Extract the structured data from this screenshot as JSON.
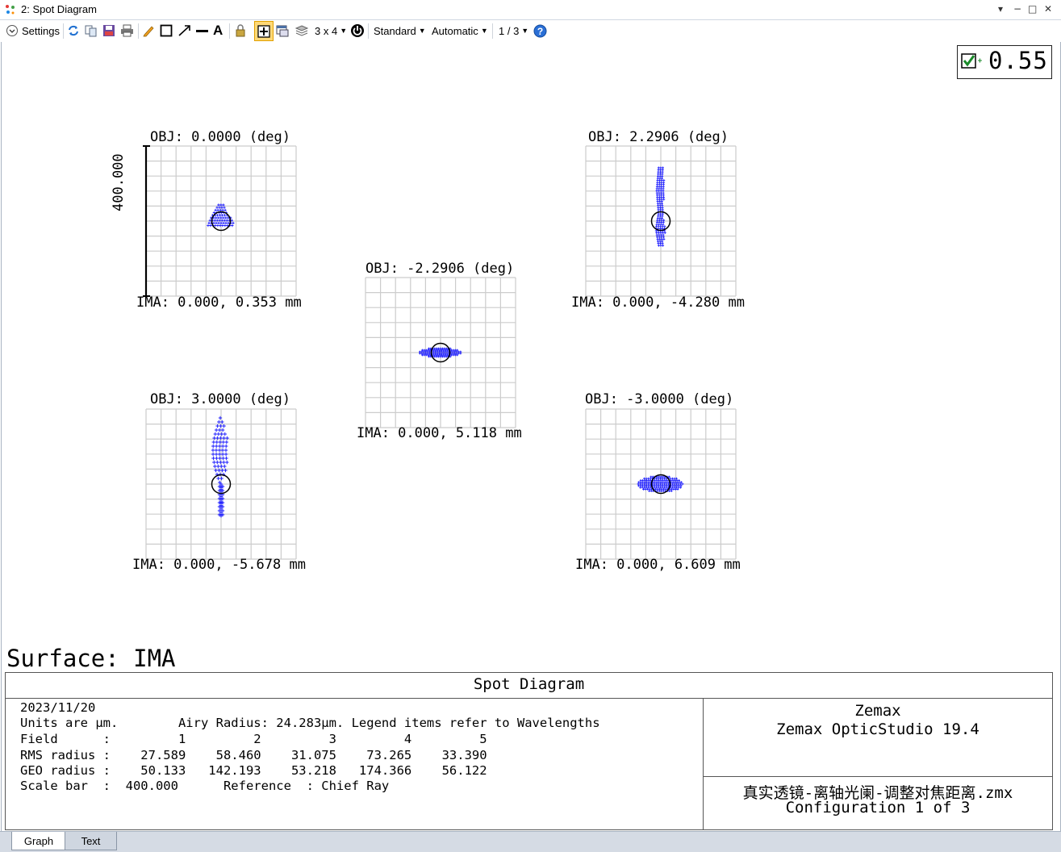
{
  "window": {
    "title": "2: Spot Diagram"
  },
  "toolbar": {
    "settings_label": "Settings",
    "layout_label": "3 x 4",
    "standard_label": "Standard",
    "automatic_label": "Automatic",
    "page_label": "1 / 3"
  },
  "badge": {
    "value": "0.55"
  },
  "plots": [
    {
      "obj": "OBJ: 0.0000 (deg)",
      "ima": "IMA: 0.000, 0.353 mm",
      "scale_label": "400.000"
    },
    {
      "obj": "OBJ: 2.2906 (deg)",
      "ima": "IMA: 0.000, -4.280 mm"
    },
    {
      "obj": "OBJ: -2.2906 (deg)",
      "ima": "IMA: 0.000, 5.118 mm"
    },
    {
      "obj": "OBJ: 3.0000 (deg)",
      "ima": "IMA: 0.000, -5.678 mm"
    },
    {
      "obj": "OBJ: -3.0000 (deg)",
      "ima": "IMA: 0.000, 6.609 mm"
    }
  ],
  "surface_label": "Surface: IMA",
  "info": {
    "title": "Spot Diagram",
    "date": "2023/11/20",
    "units_line": "Units are µm.        Airy Radius: 24.283µm. Legend items refer to Wavelengths",
    "field_line": "Field      :         1         2         3         4         5",
    "rms_line": "RMS radius :    27.589    58.460    31.075    73.265    33.390",
    "geo_line": "GEO radius :    50.133   142.193    53.218   174.366    56.122",
    "scale_line": "Scale bar  :  400.000      Reference  : Chief Ray",
    "company": "Zemax",
    "product": "Zemax OpticStudio 19.4",
    "file": "真实透镜-离轴光阑-调整对焦距离.zmx",
    "config": "Configuration 1 of 3"
  },
  "tabs": [
    {
      "label": "Graph"
    },
    {
      "label": "Text"
    }
  ],
  "colors": {
    "ray_color": "#1a1aff",
    "grid": "#cccccc",
    "accent": "#1565c0"
  }
}
